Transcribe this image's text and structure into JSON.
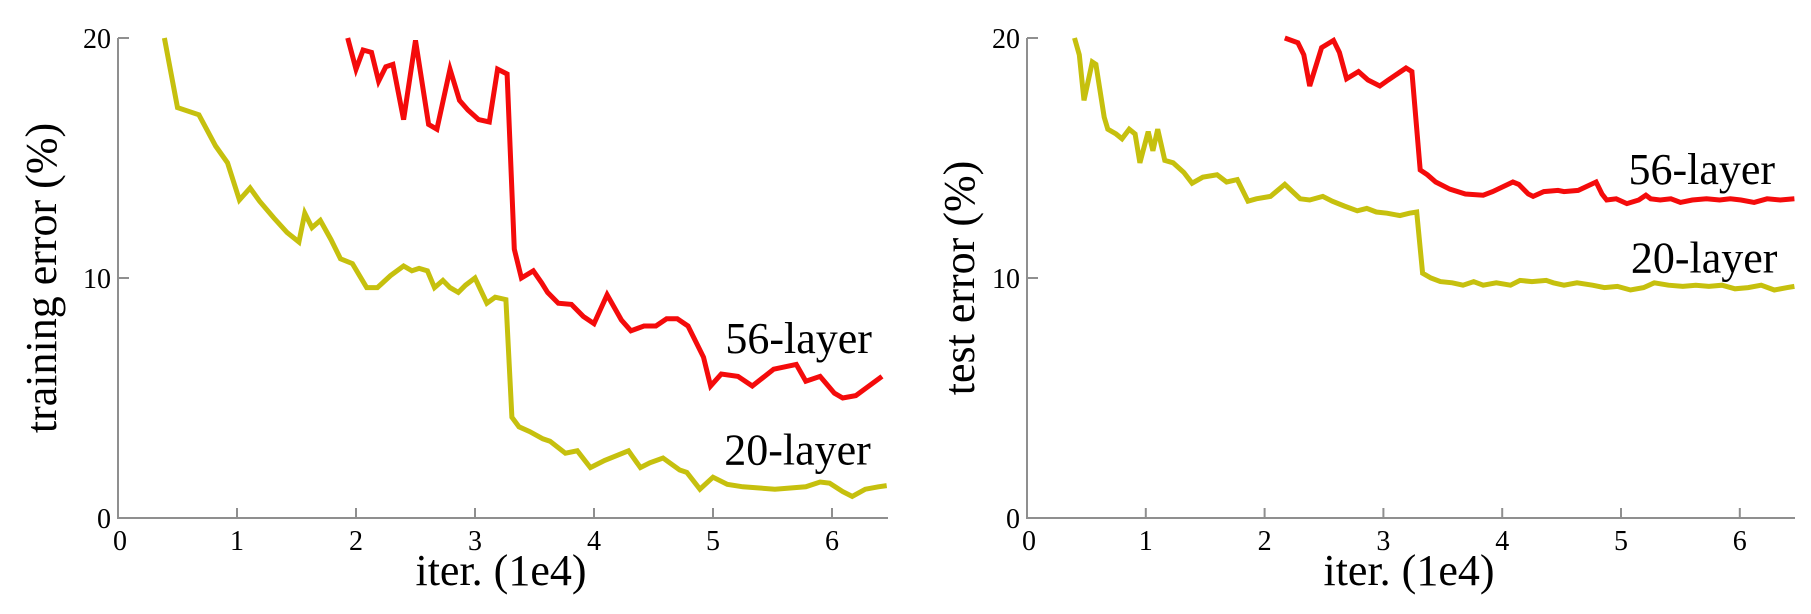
{
  "figure": {
    "background": "#ffffff",
    "description": "Training and test error of 20-layer vs 56-layer networks on CIFAR-10"
  },
  "styles": {
    "axis_color": "#8f8f8f",
    "text_color": "#000000",
    "red": "#f40b0b",
    "yellow": "#c6c00e",
    "line_width": 5,
    "tick_font_size": 28,
    "label_font_size": 44
  },
  "chart_data": [
    {
      "type": "line",
      "title": "",
      "xlabel": "iter. (1e4)",
      "ylabel": "training error (%)",
      "xlim": [
        0,
        6.5
      ],
      "ylim": [
        0,
        20
      ],
      "xticks": [
        0,
        1,
        2,
        3,
        4,
        5,
        6
      ],
      "yticks": [
        0,
        10,
        20
      ],
      "grid": false,
      "legend_position": "inline-annotations",
      "series": [
        {
          "name": "56-layer",
          "color_key": "red",
          "annotation": {
            "text": "56-layer",
            "x": 5.72,
            "y": 7.5
          },
          "points": [
            [
              1.93,
              20
            ],
            [
              2.0,
              18.7
            ],
            [
              2.06,
              19.5
            ],
            [
              2.13,
              19.4
            ],
            [
              2.19,
              18.2
            ],
            [
              2.25,
              18.8
            ],
            [
              2.31,
              18.9
            ],
            [
              2.4,
              16.6
            ],
            [
              2.5,
              19.9
            ],
            [
              2.61,
              16.4
            ],
            [
              2.68,
              16.2
            ],
            [
              2.79,
              18.7
            ],
            [
              2.87,
              17.4
            ],
            [
              2.94,
              17.0
            ],
            [
              3.03,
              16.6
            ],
            [
              3.12,
              16.5
            ],
            [
              3.19,
              18.7
            ],
            [
              3.27,
              18.5
            ],
            [
              3.33,
              11.2
            ],
            [
              3.39,
              10.0
            ],
            [
              3.49,
              10.3
            ],
            [
              3.56,
              9.8
            ],
            [
              3.61,
              9.4
            ],
            [
              3.7,
              8.95
            ],
            [
              3.81,
              8.9
            ],
            [
              3.91,
              8.4
            ],
            [
              4.0,
              8.1
            ],
            [
              4.11,
              9.3
            ],
            [
              4.23,
              8.25
            ],
            [
              4.31,
              7.8
            ],
            [
              4.42,
              8.0
            ],
            [
              4.52,
              8.0
            ],
            [
              4.61,
              8.3
            ],
            [
              4.7,
              8.3
            ],
            [
              4.79,
              8.0
            ],
            [
              4.92,
              6.7
            ],
            [
              4.98,
              5.5
            ],
            [
              5.07,
              6.0
            ],
            [
              5.21,
              5.9
            ],
            [
              5.33,
              5.5
            ],
            [
              5.51,
              6.2
            ],
            [
              5.7,
              6.4
            ],
            [
              5.78,
              5.7
            ],
            [
              5.9,
              5.9
            ],
            [
              6.02,
              5.2
            ],
            [
              6.09,
              5.0
            ],
            [
              6.2,
              5.1
            ],
            [
              6.31,
              5.5
            ],
            [
              6.42,
              5.9
            ]
          ]
        },
        {
          "name": "20-layer",
          "color_key": "yellow",
          "annotation": {
            "text": "20-layer",
            "x": 5.71,
            "y": 2.85
          },
          "points": [
            [
              0.39,
              20
            ],
            [
              0.5,
              17.1
            ],
            [
              0.68,
              16.8
            ],
            [
              0.82,
              15.5
            ],
            [
              0.92,
              14.8
            ],
            [
              1.02,
              13.25
            ],
            [
              1.11,
              13.75
            ],
            [
              1.19,
              13.2
            ],
            [
              1.31,
              12.5
            ],
            [
              1.42,
              11.9
            ],
            [
              1.52,
              11.5
            ],
            [
              1.57,
              12.7
            ],
            [
              1.63,
              12.1
            ],
            [
              1.7,
              12.4
            ],
            [
              1.79,
              11.6
            ],
            [
              1.87,
              10.8
            ],
            [
              1.97,
              10.6
            ],
            [
              2.09,
              9.6
            ],
            [
              2.18,
              9.6
            ],
            [
              2.29,
              10.1
            ],
            [
              2.4,
              10.5
            ],
            [
              2.47,
              10.3
            ],
            [
              2.53,
              10.4
            ],
            [
              2.6,
              10.3
            ],
            [
              2.66,
              9.6
            ],
            [
              2.73,
              9.9
            ],
            [
              2.79,
              9.6
            ],
            [
              2.86,
              9.4
            ],
            [
              2.92,
              9.7
            ],
            [
              3.0,
              10.0
            ],
            [
              3.1,
              8.95
            ],
            [
              3.17,
              9.2
            ],
            [
              3.26,
              9.1
            ],
            [
              3.31,
              4.2
            ],
            [
              3.37,
              3.8
            ],
            [
              3.46,
              3.6
            ],
            [
              3.57,
              3.3
            ],
            [
              3.63,
              3.2
            ],
            [
              3.76,
              2.7
            ],
            [
              3.86,
              2.8
            ],
            [
              3.97,
              2.1
            ],
            [
              4.09,
              2.4
            ],
            [
              4.29,
              2.8
            ],
            [
              4.39,
              2.1
            ],
            [
              4.47,
              2.3
            ],
            [
              4.58,
              2.5
            ],
            [
              4.72,
              2.0
            ],
            [
              4.78,
              1.9
            ],
            [
              4.89,
              1.2
            ],
            [
              5.0,
              1.7
            ],
            [
              5.12,
              1.4
            ],
            [
              5.25,
              1.3
            ],
            [
              5.39,
              1.25
            ],
            [
              5.52,
              1.2
            ],
            [
              5.65,
              1.25
            ],
            [
              5.78,
              1.3
            ],
            [
              5.9,
              1.5
            ],
            [
              5.98,
              1.45
            ],
            [
              6.09,
              1.1
            ],
            [
              6.17,
              0.9
            ],
            [
              6.28,
              1.2
            ],
            [
              6.39,
              1.3
            ],
            [
              6.46,
              1.35
            ]
          ]
        }
      ]
    },
    {
      "type": "line",
      "title": "",
      "xlabel": "iter. (1e4)",
      "ylabel": "test error (%)",
      "xlim": [
        0,
        6.5
      ],
      "ylim": [
        0,
        20
      ],
      "xticks": [
        0,
        1,
        2,
        3,
        4,
        5,
        6
      ],
      "yticks": [
        0,
        10,
        20
      ],
      "grid": false,
      "legend_position": "inline-annotations",
      "series": [
        {
          "name": "56-layer",
          "color_key": "red",
          "annotation": {
            "text": "56-layer",
            "x": 5.68,
            "y": 14.55
          },
          "points": [
            [
              2.17,
              20
            ],
            [
              2.28,
              19.8
            ],
            [
              2.33,
              19.3
            ],
            [
              2.38,
              18.0
            ],
            [
              2.48,
              19.6
            ],
            [
              2.58,
              19.9
            ],
            [
              2.63,
              19.4
            ],
            [
              2.69,
              18.3
            ],
            [
              2.79,
              18.6
            ],
            [
              2.87,
              18.25
            ],
            [
              2.97,
              18.0
            ],
            [
              3.04,
              18.25
            ],
            [
              3.19,
              18.75
            ],
            [
              3.24,
              18.6
            ],
            [
              3.31,
              14.5
            ],
            [
              3.37,
              14.3
            ],
            [
              3.44,
              14.0
            ],
            [
              3.56,
              13.7
            ],
            [
              3.69,
              13.5
            ],
            [
              3.84,
              13.45
            ],
            [
              3.92,
              13.6
            ],
            [
              4.09,
              14.0
            ],
            [
              4.14,
              13.9
            ],
            [
              4.22,
              13.5
            ],
            [
              4.26,
              13.4
            ],
            [
              4.35,
              13.6
            ],
            [
              4.47,
              13.65
            ],
            [
              4.52,
              13.6
            ],
            [
              4.64,
              13.65
            ],
            [
              4.79,
              14.0
            ],
            [
              4.84,
              13.5
            ],
            [
              4.88,
              13.25
            ],
            [
              4.96,
              13.3
            ],
            [
              5.05,
              13.1
            ],
            [
              5.15,
              13.25
            ],
            [
              5.21,
              13.45
            ],
            [
              5.25,
              13.3
            ],
            [
              5.33,
              13.25
            ],
            [
              5.42,
              13.3
            ],
            [
              5.5,
              13.15
            ],
            [
              5.6,
              13.25
            ],
            [
              5.72,
              13.3
            ],
            [
              5.83,
              13.25
            ],
            [
              5.92,
              13.3
            ],
            [
              6.01,
              13.25
            ],
            [
              6.12,
              13.15
            ],
            [
              6.23,
              13.3
            ],
            [
              6.34,
              13.25
            ],
            [
              6.46,
              13.3
            ]
          ]
        },
        {
          "name": "20-layer",
          "color_key": "yellow",
          "annotation": {
            "text": "20-layer",
            "x": 5.7,
            "y": 10.85
          },
          "points": [
            [
              0.4,
              20
            ],
            [
              0.44,
              19.3
            ],
            [
              0.48,
              17.4
            ],
            [
              0.55,
              19.0
            ],
            [
              0.58,
              18.9
            ],
            [
              0.65,
              16.7
            ],
            [
              0.68,
              16.2
            ],
            [
              0.75,
              16.0
            ],
            [
              0.8,
              15.8
            ],
            [
              0.86,
              16.2
            ],
            [
              0.91,
              16.0
            ],
            [
              0.95,
              14.8
            ],
            [
              1.02,
              16.1
            ],
            [
              1.06,
              15.3
            ],
            [
              1.1,
              16.2
            ],
            [
              1.16,
              14.9
            ],
            [
              1.23,
              14.8
            ],
            [
              1.32,
              14.4
            ],
            [
              1.39,
              13.95
            ],
            [
              1.48,
              14.2
            ],
            [
              1.6,
              14.3
            ],
            [
              1.68,
              14.0
            ],
            [
              1.77,
              14.1
            ],
            [
              1.86,
              13.2
            ],
            [
              1.93,
              13.3
            ],
            [
              2.05,
              13.4
            ],
            [
              2.17,
              13.9
            ],
            [
              2.3,
              13.3
            ],
            [
              2.38,
              13.25
            ],
            [
              2.49,
              13.4
            ],
            [
              2.57,
              13.2
            ],
            [
              2.67,
              13.0
            ],
            [
              2.78,
              12.8
            ],
            [
              2.86,
              12.9
            ],
            [
              2.94,
              12.75
            ],
            [
              3.03,
              12.7
            ],
            [
              3.14,
              12.6
            ],
            [
              3.22,
              12.7
            ],
            [
              3.28,
              12.75
            ],
            [
              3.33,
              10.2
            ],
            [
              3.4,
              10.0
            ],
            [
              3.48,
              9.85
            ],
            [
              3.58,
              9.8
            ],
            [
              3.67,
              9.7
            ],
            [
              3.76,
              9.85
            ],
            [
              3.84,
              9.7
            ],
            [
              3.95,
              9.8
            ],
            [
              4.07,
              9.7
            ],
            [
              4.15,
              9.9
            ],
            [
              4.25,
              9.85
            ],
            [
              4.37,
              9.9
            ],
            [
              4.43,
              9.8
            ],
            [
              4.52,
              9.7
            ],
            [
              4.63,
              9.8
            ],
            [
              4.76,
              9.7
            ],
            [
              4.86,
              9.6
            ],
            [
              4.97,
              9.65
            ],
            [
              5.08,
              9.5
            ],
            [
              5.19,
              9.6
            ],
            [
              5.28,
              9.8
            ],
            [
              5.4,
              9.7
            ],
            [
              5.52,
              9.65
            ],
            [
              5.63,
              9.7
            ],
            [
              5.74,
              9.65
            ],
            [
              5.85,
              9.7
            ],
            [
              5.96,
              9.55
            ],
            [
              6.07,
              9.6
            ],
            [
              6.18,
              9.7
            ],
            [
              6.29,
              9.5
            ],
            [
              6.4,
              9.6
            ],
            [
              6.46,
              9.65
            ]
          ]
        }
      ]
    }
  ]
}
